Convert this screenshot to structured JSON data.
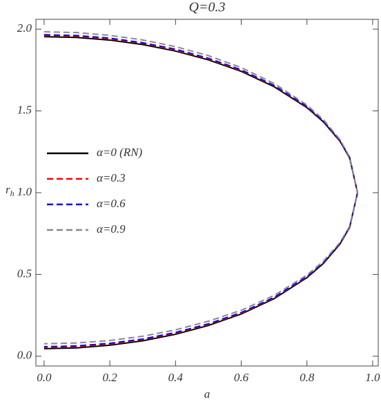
{
  "chart_data": {
    "type": "line",
    "title": "Q=0.3",
    "xlabel": "a",
    "ylabel": "r",
    "ylabel_sub": "h",
    "x": [
      0,
      0.1,
      0.2,
      0.3,
      0.4,
      0.5,
      0.6,
      0.7,
      0.8,
      0.85,
      0.9,
      0.93,
      0.954,
      0.93,
      0.9,
      0.85,
      0.8,
      0.7,
      0.6,
      0.5,
      0.4,
      0.3,
      0.2,
      0.1,
      0
    ],
    "series": [
      {
        "name": "α=0 (RN)",
        "color": "#000000",
        "dashed": false,
        "values": [
          1.954,
          1.949,
          1.933,
          1.906,
          1.866,
          1.812,
          1.742,
          1.648,
          1.52,
          1.433,
          1.316,
          1.212,
          1.0,
          0.788,
          0.684,
          0.567,
          0.48,
          0.352,
          0.258,
          0.188,
          0.134,
          0.094,
          0.067,
          0.051,
          0.046
        ]
      },
      {
        "name": "α=0.3",
        "color": "#ff0000",
        "dashed": true,
        "values": [
          1.961,
          1.956,
          1.94,
          1.913,
          1.872,
          1.818,
          1.747,
          1.653,
          1.524,
          1.436,
          1.318,
          1.214,
          1.0,
          0.79,
          0.686,
          0.57,
          0.484,
          0.357,
          0.263,
          0.194,
          0.141,
          0.101,
          0.074,
          0.058,
          0.053
        ]
      },
      {
        "name": "α=0.6",
        "color": "#0000ee",
        "dashed": true,
        "values": [
          1.966,
          1.961,
          1.945,
          1.917,
          1.877,
          1.822,
          1.751,
          1.656,
          1.527,
          1.438,
          1.32,
          1.215,
          1.0,
          0.791,
          0.688,
          0.572,
          0.487,
          0.36,
          0.267,
          0.198,
          0.145,
          0.105,
          0.079,
          0.063,
          0.058
        ]
      },
      {
        "name": "α=0.9",
        "color": "#888888",
        "dashed": true,
        "values": [
          1.984,
          1.979,
          1.962,
          1.934,
          1.893,
          1.838,
          1.765,
          1.668,
          1.536,
          1.447,
          1.326,
          1.219,
          1.0,
          0.795,
          0.694,
          0.581,
          0.496,
          0.372,
          0.281,
          0.214,
          0.161,
          0.122,
          0.096,
          0.081,
          0.076
        ]
      }
    ],
    "xlim": [
      -0.025,
      1.017
    ],
    "ylim": [
      -0.06,
      2.06
    ],
    "xticks": [
      {
        "value": 0,
        "label": "0.0"
      },
      {
        "value": 0.2,
        "label": "0.2"
      },
      {
        "value": 0.4,
        "label": "0.4"
      },
      {
        "value": 0.6,
        "label": "0.6"
      },
      {
        "value": 0.8,
        "label": "0.8"
      },
      {
        "value": 1,
        "label": "1.0"
      }
    ],
    "yticks": [
      {
        "value": 0,
        "label": "0.0"
      },
      {
        "value": 0.5,
        "label": "0.5"
      },
      {
        "value": 1,
        "label": "1.0"
      },
      {
        "value": 1.5,
        "label": "1.5"
      },
      {
        "value": 2,
        "label": "2.0"
      }
    ],
    "legend": "left"
  }
}
